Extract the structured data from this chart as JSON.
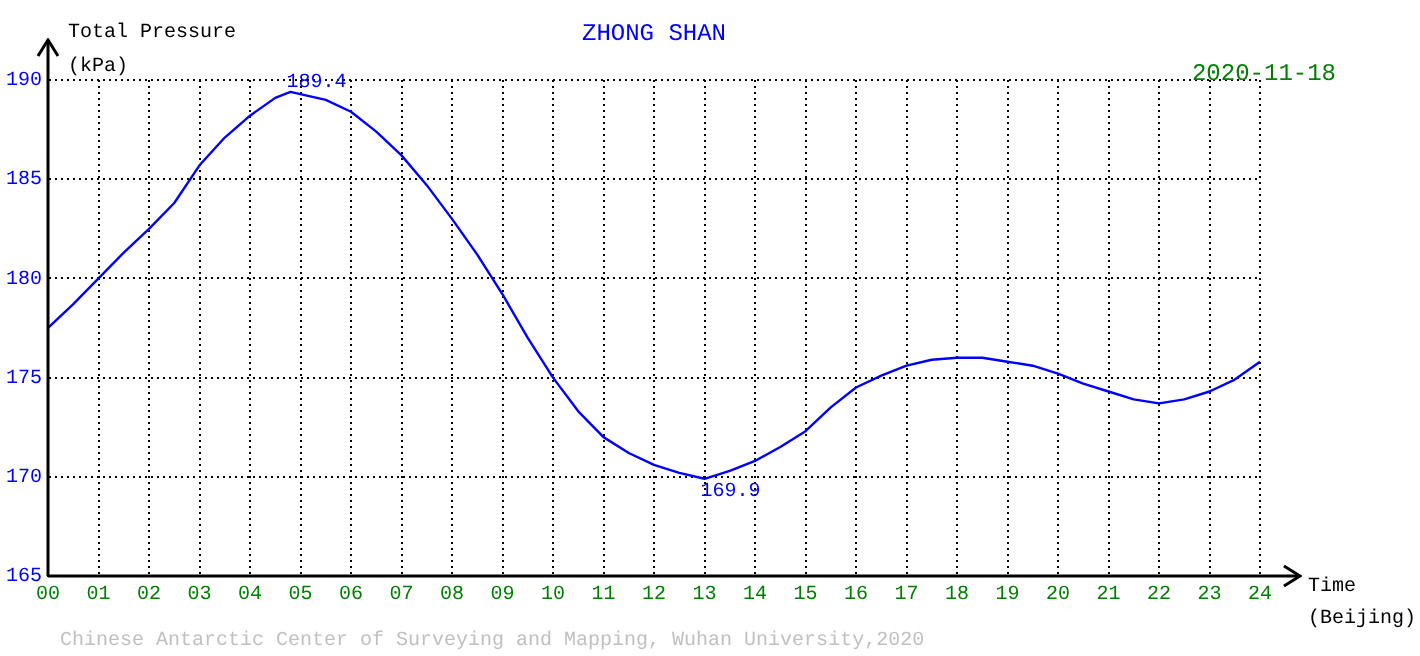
{
  "chart_data": {
    "type": "line",
    "title": "ZHONG SHAN",
    "xlabel": "Time\n(Beijing)",
    "ylabel": "Total Pressure\n(kPa)",
    "annotations": [
      {
        "text": "189.4",
        "x": 4.8,
        "y": 189.4
      },
      {
        "text": "169.9",
        "x": 13,
        "y": 169.9
      },
      "2020-11-18",
      "Chinese Antarctic Center of Surveying and Mapping, Wuhan University,2020"
    ],
    "x": [
      0,
      0.5,
      1,
      1.5,
      2,
      2.5,
      3,
      3.5,
      4,
      4.5,
      4.8,
      5.5,
      6,
      6.5,
      7,
      7.5,
      8,
      8.5,
      9,
      9.5,
      10,
      10.5,
      11,
      11.5,
      12,
      12.5,
      13,
      13.5,
      14,
      14.5,
      15,
      15.5,
      16,
      16.5,
      17,
      17.5,
      18,
      18.5,
      19,
      19.5,
      20,
      20.5,
      21,
      21.5,
      22,
      22.5,
      23,
      23.5,
      24
    ],
    "series": [
      {
        "color": "#0000ff",
        "values": [
          177.5,
          178.7,
          180,
          181.3,
          182.5,
          183.8,
          185.7,
          187.1,
          188.2,
          189.1,
          189.4,
          189,
          188.4,
          187.4,
          186.2,
          184.7,
          183,
          181.2,
          179.2,
          177,
          175,
          173.3,
          172,
          171.2,
          170.6,
          170.2,
          169.9,
          170.3,
          170.8,
          171.5,
          172.3,
          173.5,
          174.5,
          175.1,
          175.6,
          175.9,
          176,
          176,
          175.8,
          175.6,
          175.2,
          174.7,
          174.3,
          173.9,
          173.7,
          173.9,
          174.3,
          174.9,
          175.8
        ]
      }
    ],
    "xlim": [
      0,
      24
    ],
    "xticks": [
      {
        "value": 0,
        "label": "00"
      },
      {
        "value": 1,
        "label": "01"
      },
      {
        "value": 2,
        "label": "02"
      },
      {
        "value": 3,
        "label": "03"
      },
      {
        "value": 4,
        "label": "04"
      },
      {
        "value": 5,
        "label": "05"
      },
      {
        "value": 6,
        "label": "06"
      },
      {
        "value": 7,
        "label": "07"
      },
      {
        "value": 8,
        "label": "08"
      },
      {
        "value": 9,
        "label": "09"
      },
      {
        "value": 10,
        "label": "10"
      },
      {
        "value": 11,
        "label": "11"
      },
      {
        "value": 12,
        "label": "12"
      },
      {
        "value": 13,
        "label": "13"
      },
      {
        "value": 14,
        "label": "14"
      },
      {
        "value": 15,
        "label": "15"
      },
      {
        "value": 16,
        "label": "16"
      },
      {
        "value": 17,
        "label": "17"
      },
      {
        "value": 18,
        "label": "18"
      },
      {
        "value": 19,
        "label": "19"
      },
      {
        "value": 20,
        "label": "20"
      },
      {
        "value": 21,
        "label": "21"
      },
      {
        "value": 22,
        "label": "22"
      },
      {
        "value": 23,
        "label": "23"
      },
      {
        "value": 24,
        "label": "24"
      }
    ],
    "ylim": [
      165,
      190
    ],
    "yticks": [
      165,
      170,
      175,
      180,
      185,
      190
    ],
    "grid": true,
    "legend": false,
    "marker": "none",
    "line_style": "solid"
  }
}
